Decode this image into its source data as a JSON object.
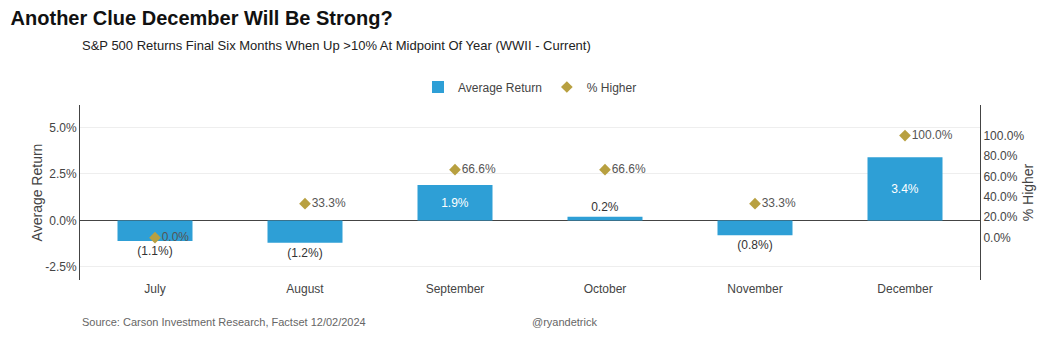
{
  "chart_data": {
    "type": "bar",
    "title": "Another Clue December Will Be Strong?",
    "subtitle": "S&P 500 Returns Final Six Months When Up >10% At Midpoint Of Year (WWII - Current)",
    "ylabel": "Average Return",
    "y2label": "% Higher",
    "categories": [
      "July",
      "August",
      "September",
      "October",
      "November",
      "December"
    ],
    "series": [
      {
        "name": "Average Return",
        "type": "bar",
        "color": "#2E9FD6",
        "values": [
          -1.1,
          -1.2,
          1.9,
          0.2,
          -0.8,
          3.4
        ],
        "value_labels": [
          "(1.1%)",
          "(1.2%)",
          "1.9%",
          "0.2%",
          "(0.8%)",
          "3.4%"
        ]
      },
      {
        "name": "% Higher",
        "type": "scatter",
        "marker": "diamond",
        "color": "#B8A040",
        "axis": "y2",
        "values": [
          0.0,
          33.3,
          66.6,
          66.6,
          33.3,
          100.0
        ],
        "value_labels": [
          "0.0%",
          "33.3%",
          "66.6%",
          "66.6%",
          "33.3%",
          "100.0%"
        ]
      }
    ],
    "ylim": [
      -3.2,
      6.2
    ],
    "yticks": [
      {
        "value": -2.5,
        "label": "-2.5%"
      },
      {
        "value": 0.0,
        "label": "0.0%"
      },
      {
        "value": 2.5,
        "label": "2.5%"
      },
      {
        "value": 5.0,
        "label": "5.0%"
      }
    ],
    "y2lim": [
      -41.5,
      130.0
    ],
    "y2ticks": [
      {
        "value": 0.0,
        "label": "0.0%"
      },
      {
        "value": 20.0,
        "label": "20.0%"
      },
      {
        "value": 40.0,
        "label": "40.0%"
      },
      {
        "value": 60.0,
        "label": "60.0%"
      },
      {
        "value": 80.0,
        "label": "80.0%"
      },
      {
        "value": 100.0,
        "label": "100.0%"
      }
    ],
    "grid": true,
    "data_labels": true,
    "legend": "upper center",
    "annotations": [
      "Source: Carson Investment Research, Factset 12/02/2024",
      "@ryandetrick"
    ]
  }
}
